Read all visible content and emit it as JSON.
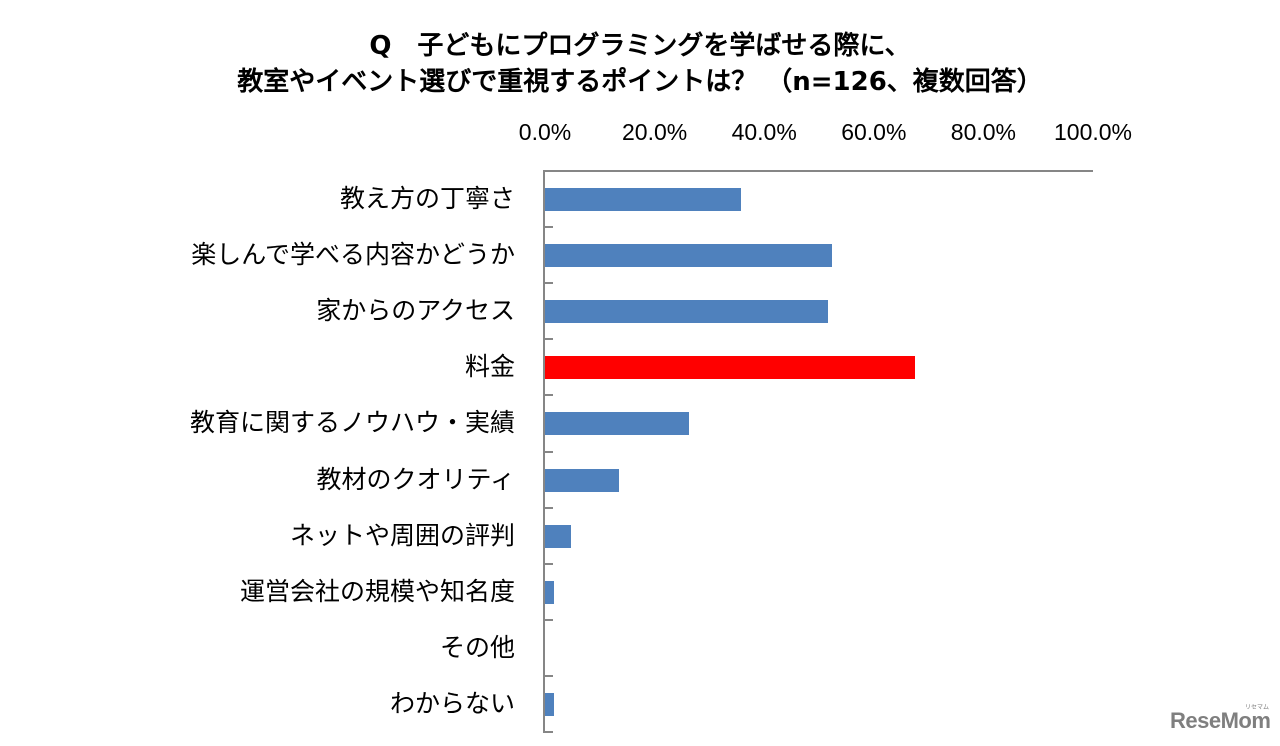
{
  "title": {
    "line1": "Q　子どもにプログラミングを学ばせる際に、",
    "line2": "教室やイベント選びで重視するポイントは？ （n=126、複数回答）"
  },
  "axis": {
    "ticks": [
      "0.0%",
      "20.0%",
      "40.0%",
      "60.0%",
      "80.0%",
      "100.0%"
    ]
  },
  "colors": {
    "bar_default": "#4f81bd",
    "bar_highlight": "#ff0000",
    "axis": "#868686"
  },
  "watermark": {
    "text": "ReseMom",
    "ruby": "リセマム"
  },
  "chart_data": {
    "type": "bar",
    "orientation": "horizontal",
    "title": "Q 子どもにプログラミングを学ばせる際に、教室やイベント選びで重視するポイントは？ （n=126、複数回答）",
    "xlabel": "",
    "ylabel": "",
    "xlim": [
      0,
      100
    ],
    "x_tick_labels": [
      "0.0%",
      "20.0%",
      "40.0%",
      "60.0%",
      "80.0%",
      "100.0%"
    ],
    "x_axis_position": "top",
    "grid": false,
    "legend": null,
    "categories": [
      "教え方の丁寧さ",
      "楽しんで学べる内容かどうか",
      "家からのアクセス",
      "料金",
      "教育に関するノウハウ・実績",
      "教材のクオリティ",
      "ネットや周囲の評判",
      "運営会社の規模や知名度",
      "その他",
      "わからない"
    ],
    "values": [
      35.7,
      52.4,
      51.6,
      67.5,
      26.2,
      13.5,
      4.8,
      1.6,
      0.0,
      1.6
    ],
    "highlighted_index": 3,
    "units": "%"
  }
}
